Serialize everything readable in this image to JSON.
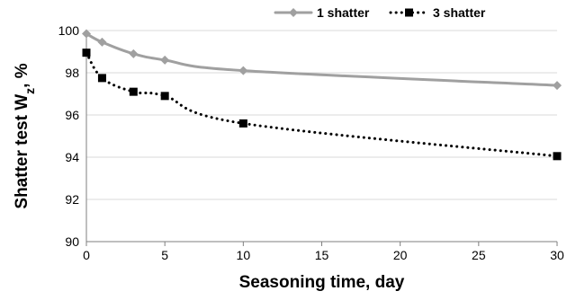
{
  "chart_data": {
    "type": "line",
    "xlabel": "Seasoning time, day",
    "ylabel": {
      "main": "Shatter test W",
      "sub": "z",
      "tail": ", %"
    },
    "xlim": [
      0,
      30
    ],
    "ylim": [
      90,
      100
    ],
    "xticks": [
      "0",
      "5",
      "10",
      "15",
      "20",
      "25",
      "30"
    ],
    "yticks": [
      "90",
      "92",
      "94",
      "96",
      "98",
      "100"
    ],
    "grid": "horizontal",
    "legend_position": "top-right",
    "series": [
      {
        "name": "1 shatter",
        "color": "#a0a0a0",
        "marker": "diamond",
        "line_style": "solid",
        "x": [
          0,
          1,
          3,
          5,
          10,
          30
        ],
        "y": [
          99.85,
          99.45,
          98.9,
          98.6,
          98.1,
          97.4
        ]
      },
      {
        "name": "3 shatter",
        "color": "#000000",
        "marker": "square",
        "line_style": "dotted",
        "x": [
          0,
          1,
          3,
          5,
          10,
          30
        ],
        "y": [
          98.95,
          97.75,
          97.1,
          96.9,
          95.6,
          94.05
        ]
      }
    ]
  }
}
